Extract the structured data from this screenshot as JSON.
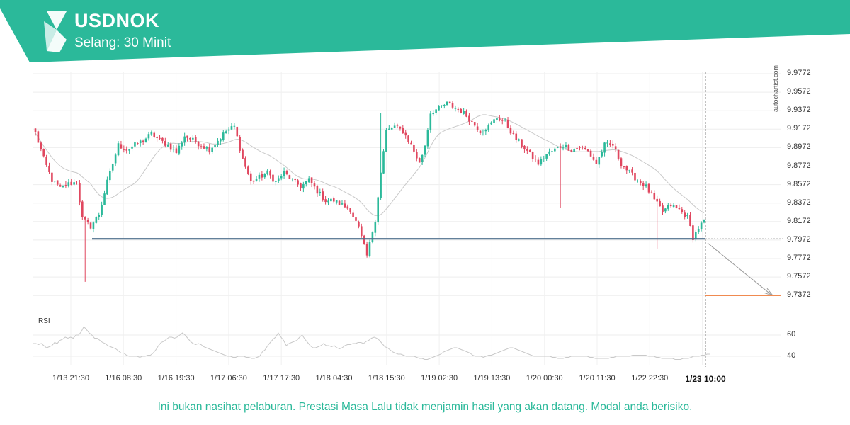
{
  "header": {
    "symbol": "USDNOK",
    "interval": "Selang: 30 Minit",
    "logo_icon": "autochartist-s-logo-icon",
    "banner_color": "#2bb99a"
  },
  "watermark": "autochartist.com",
  "disclaimer": "Ini bukan nasihat pelaburan. Prestasi Masa Lalu tidak menjamin hasil yang akan datang. Modal anda berisiko.",
  "chart_data": {
    "type": "candlestick",
    "symbol": "USDNOK",
    "colors": {
      "bull": "#2bb99a",
      "bear": "#e0475f",
      "support": "#4d6e8c",
      "target": "#f08a50",
      "ma": "#c9c9c9",
      "rsi": "#c9c9c9"
    },
    "price_axis": {
      "ticks": [
        9.9772,
        9.9572,
        9.9372,
        9.9172,
        9.8972,
        9.8772,
        9.8572,
        9.8372,
        9.8172,
        9.7972,
        9.7772,
        9.7572,
        9.7372
      ],
      "range": [
        9.72,
        9.98
      ]
    },
    "time_axis": {
      "labels": [
        "1/13 21:30",
        "1/16 08:30",
        "1/16 19:30",
        "1/17 06:30",
        "1/17 17:30",
        "1/18 04:30",
        "1/18 15:30",
        "1/19 02:30",
        "1/19 13:30",
        "1/20 00:30",
        "1/20 11:30",
        "1/22 22:30",
        "1/23 10:00"
      ],
      "highlighted": "1/23 10:00"
    },
    "close_path": [
      [
        0,
        9.913
      ],
      [
        3,
        9.885
      ],
      [
        6,
        9.862
      ],
      [
        9,
        9.853
      ],
      [
        12,
        9.858
      ],
      [
        15,
        9.86
      ],
      [
        17,
        9.82
      ],
      [
        20,
        9.812
      ],
      [
        23,
        9.825
      ],
      [
        26,
        9.86
      ],
      [
        28,
        9.88
      ],
      [
        30,
        9.9
      ],
      [
        33,
        9.895
      ],
      [
        36,
        9.9
      ],
      [
        39,
        9.905
      ],
      [
        42,
        9.912
      ],
      [
        45,
        9.905
      ],
      [
        48,
        9.9
      ],
      [
        51,
        9.892
      ],
      [
        54,
        9.91
      ],
      [
        57,
        9.905
      ],
      [
        60,
        9.9
      ],
      [
        63,
        9.895
      ],
      [
        66,
        9.905
      ],
      [
        69,
        9.915
      ],
      [
        72,
        9.92
      ],
      [
        75,
        9.885
      ],
      [
        78,
        9.86
      ],
      [
        81,
        9.865
      ],
      [
        84,
        9.87
      ],
      [
        87,
        9.86
      ],
      [
        90,
        9.87
      ],
      [
        93,
        9.862
      ],
      [
        96,
        9.855
      ],
      [
        99,
        9.862
      ],
      [
        102,
        9.85
      ],
      [
        105,
        9.84
      ],
      [
        108,
        9.84
      ],
      [
        111,
        9.835
      ],
      [
        114,
        9.83
      ],
      [
        117,
        9.81
      ],
      [
        120,
        9.78
      ],
      [
        123,
        9.82
      ],
      [
        125,
        9.87
      ],
      [
        127,
        9.915
      ],
      [
        130,
        9.92
      ],
      [
        133,
        9.915
      ],
      [
        136,
        9.9
      ],
      [
        139,
        9.88
      ],
      [
        141,
        9.9
      ],
      [
        143,
        9.935
      ],
      [
        146,
        9.94
      ],
      [
        149,
        9.945
      ],
      [
        152,
        9.94
      ],
      [
        155,
        9.935
      ],
      [
        158,
        9.925
      ],
      [
        161,
        9.915
      ],
      [
        164,
        9.92
      ],
      [
        167,
        9.93
      ],
      [
        170,
        9.925
      ],
      [
        173,
        9.91
      ],
      [
        176,
        9.9
      ],
      [
        179,
        9.89
      ],
      [
        182,
        9.88
      ],
      [
        185,
        9.89
      ],
      [
        188,
        9.895
      ],
      [
        191,
        9.9
      ],
      [
        194,
        9.895
      ],
      [
        197,
        9.898
      ],
      [
        200,
        9.893
      ],
      [
        203,
        9.88
      ],
      [
        206,
        9.9
      ],
      [
        209,
        9.9
      ],
      [
        212,
        9.88
      ],
      [
        215,
        9.87
      ],
      [
        218,
        9.862
      ],
      [
        221,
        9.855
      ],
      [
        224,
        9.84
      ],
      [
        227,
        9.828
      ],
      [
        230,
        9.835
      ],
      [
        233,
        9.83
      ],
      [
        236,
        9.822
      ],
      [
        238,
        9.8
      ],
      [
        240,
        9.81
      ],
      [
        242,
        9.818
      ]
    ],
    "support_level": {
      "price": 9.7985,
      "label": ""
    },
    "projection": {
      "from": 9.794,
      "to": 9.7372
    },
    "rsi": {
      "label": "RSI",
      "ticks": [
        60,
        40
      ],
      "values": [
        52,
        52,
        51,
        52,
        50,
        48,
        49,
        50,
        53,
        52,
        55,
        56,
        58,
        57,
        58,
        57,
        60,
        60,
        63,
        68,
        65,
        62,
        60,
        57,
        57,
        55,
        53,
        52,
        50,
        49,
        48,
        47,
        45,
        43,
        43,
        41,
        40,
        40,
        40,
        40,
        39,
        40,
        40,
        41,
        41,
        43,
        46,
        50,
        53,
        54,
        56,
        58,
        58,
        57,
        58,
        60,
        62,
        60,
        57,
        54,
        52,
        51,
        52,
        51,
        49,
        48,
        47,
        46,
        45,
        44,
        43,
        42,
        41,
        40,
        40,
        39,
        39,
        40,
        40,
        40,
        39,
        39,
        38,
        38,
        39,
        40,
        44,
        46,
        50,
        53,
        56,
        58,
        62,
        58,
        55,
        50,
        52,
        53,
        54,
        55,
        58,
        60,
        56,
        53,
        50,
        48,
        48,
        49,
        50,
        52,
        50,
        50,
        49,
        50,
        48,
        47,
        48,
        50,
        51,
        51,
        52,
        52,
        53,
        53,
        52,
        54,
        55,
        57,
        58,
        57,
        55,
        52,
        49,
        48,
        46,
        44,
        43,
        42,
        42,
        41,
        40,
        40,
        40,
        40,
        39,
        38,
        38,
        37,
        37,
        38,
        39,
        40,
        41,
        42,
        44,
        45,
        46,
        47,
        48,
        48,
        47,
        46,
        45,
        44,
        43,
        41,
        40,
        40,
        40,
        39,
        40,
        41,
        41,
        42,
        43,
        44,
        45,
        46,
        47,
        48,
        48,
        47,
        46,
        45,
        44,
        43,
        42,
        41,
        40,
        40,
        40,
        40,
        40,
        40,
        40,
        39,
        39,
        38,
        38,
        38,
        39,
        39,
        40,
        40,
        40,
        40,
        40,
        40,
        40,
        39,
        39,
        38,
        38,
        38,
        38,
        38,
        38,
        39,
        39,
        40,
        40,
        40,
        40,
        40,
        40,
        41,
        41,
        41,
        41,
        41,
        41,
        40,
        40,
        40,
        39,
        39,
        38,
        38,
        38,
        38,
        38,
        37,
        37,
        37,
        38,
        38,
        38,
        39,
        40,
        40,
        40,
        41,
        41,
        42,
        42
      ]
    }
  }
}
